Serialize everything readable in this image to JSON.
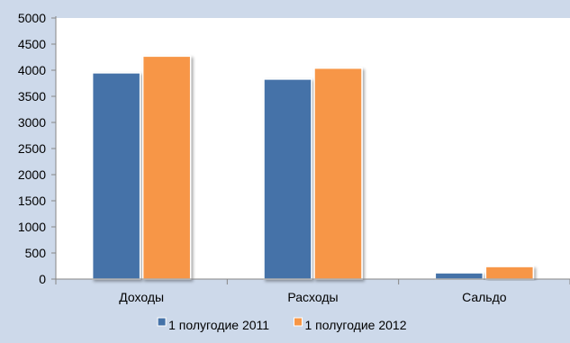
{
  "chart_data": {
    "type": "bar",
    "title": "",
    "xlabel": "",
    "ylabel": "",
    "categories": [
      "Доходы",
      "Расходы",
      "Сальдо"
    ],
    "series": [
      {
        "name": "1 полугодие 2011",
        "values": [
          3950,
          3830,
          120
        ],
        "color": "#4472a8"
      },
      {
        "name": "1 полугодие 2012",
        "values": [
          4270,
          4040,
          240
        ],
        "color": "#f79646"
      }
    ],
    "ylim": [
      0,
      5000
    ],
    "y_ticks": [
      "0",
      "500",
      "1000",
      "1500",
      "2000",
      "2500",
      "3000",
      "3500",
      "4000",
      "4500",
      "5000"
    ],
    "grid": false,
    "legend_position": "bottom",
    "plot_background": "#ffffff",
    "background": "#cdd9ea"
  }
}
